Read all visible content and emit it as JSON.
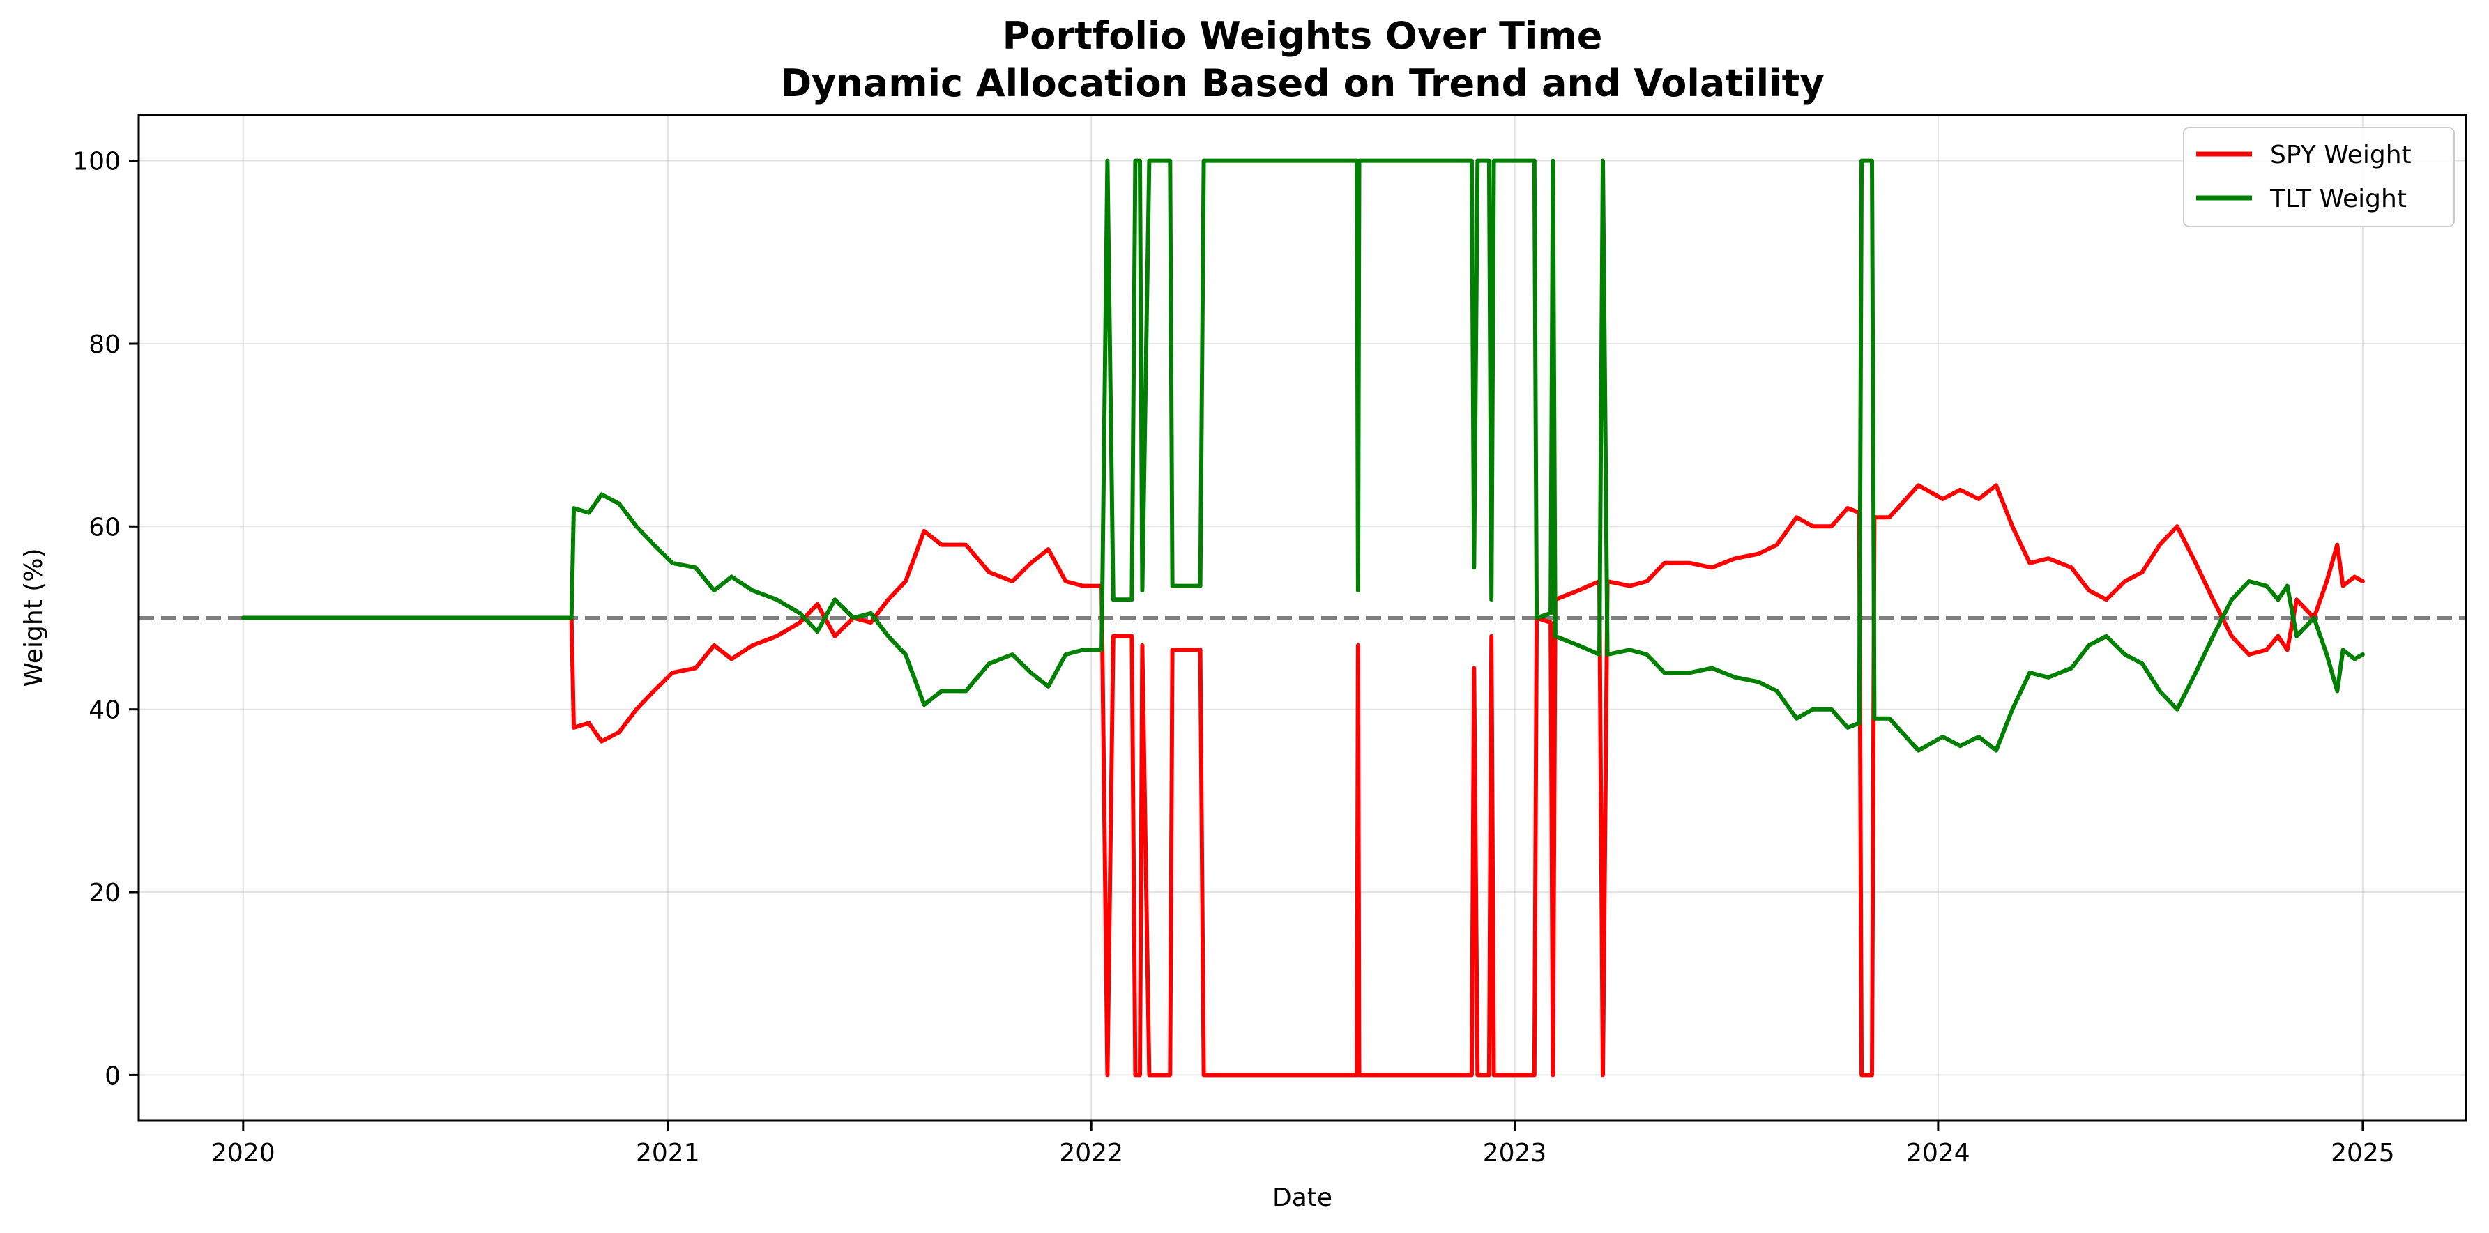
{
  "chart_data": {
    "type": "line",
    "title": "Portfolio Weights Over Time",
    "subtitle": "Dynamic Allocation Based on Trend and Volatility",
    "xlabel": "Date",
    "ylabel": "Weight (%)",
    "xlim": [
      "2019-10-03",
      "2025-03-31"
    ],
    "ylim": [
      -5,
      105
    ],
    "x_ticks": [
      "2020-01-01",
      "2021-01-01",
      "2022-01-01",
      "2023-01-01",
      "2024-01-01",
      "2025-01-01"
    ],
    "x_tick_labels": [
      "2020",
      "2021",
      "2022",
      "2023",
      "2024",
      "2025"
    ],
    "y_ticks": [
      0,
      20,
      40,
      60,
      80,
      100
    ],
    "y_tick_labels": [
      "0",
      "20",
      "40",
      "60",
      "80",
      "100"
    ],
    "grid": true,
    "legend_position": "top-right",
    "reference_line": {
      "y": 50,
      "style": "dashed",
      "color": "#7f7f7f"
    },
    "series": [
      {
        "name": "SPY Weight",
        "color": "#ff0000",
        "points": [
          [
            "2020-01-01",
            50
          ],
          [
            "2020-10-10",
            50
          ],
          [
            "2020-10-12",
            38
          ],
          [
            "2020-10-25",
            38.5
          ],
          [
            "2020-11-05",
            36.5
          ],
          [
            "2020-11-20",
            37.5
          ],
          [
            "2020-12-05",
            40
          ],
          [
            "2020-12-20",
            42
          ],
          [
            "2021-01-05",
            44
          ],
          [
            "2021-01-25",
            44.5
          ],
          [
            "2021-02-10",
            47
          ],
          [
            "2021-02-25",
            45.5
          ],
          [
            "2021-03-15",
            47
          ],
          [
            "2021-04-05",
            48
          ],
          [
            "2021-04-25",
            49.5
          ],
          [
            "2021-05-10",
            51.5
          ],
          [
            "2021-05-25",
            48
          ],
          [
            "2021-06-10",
            50
          ],
          [
            "2021-06-25",
            49.5
          ],
          [
            "2021-07-10",
            52
          ],
          [
            "2021-07-25",
            54
          ],
          [
            "2021-08-10",
            59.5
          ],
          [
            "2021-08-25",
            58
          ],
          [
            "2021-09-15",
            58
          ],
          [
            "2021-10-05",
            55
          ],
          [
            "2021-10-25",
            54
          ],
          [
            "2021-11-10",
            56
          ],
          [
            "2021-11-25",
            57.5
          ],
          [
            "2021-12-10",
            54
          ],
          [
            "2021-12-25",
            53.5
          ],
          [
            "2022-01-10",
            53.5
          ],
          [
            "2022-01-15",
            0
          ],
          [
            "2022-01-20",
            48
          ],
          [
            "2022-02-05",
            48
          ],
          [
            "2022-02-08",
            0
          ],
          [
            "2022-02-12",
            0
          ],
          [
            "2022-02-14",
            47
          ],
          [
            "2022-02-20",
            0
          ],
          [
            "2022-03-10",
            0
          ],
          [
            "2022-03-12",
            46.5
          ],
          [
            "2022-04-05",
            46.5
          ],
          [
            "2022-04-08",
            0
          ],
          [
            "2022-08-18",
            0
          ],
          [
            "2022-08-19",
            47
          ],
          [
            "2022-08-20",
            0
          ],
          [
            "2022-11-25",
            0
          ],
          [
            "2022-11-27",
            44.5
          ],
          [
            "2022-11-30",
            0
          ],
          [
            "2022-12-10",
            0
          ],
          [
            "2022-12-12",
            48
          ],
          [
            "2022-12-14",
            0
          ],
          [
            "2023-01-18",
            0
          ],
          [
            "2023-01-20",
            50
          ],
          [
            "2023-02-01",
            49.5
          ],
          [
            "2023-02-03",
            0
          ],
          [
            "2023-02-05",
            52
          ],
          [
            "2023-02-25",
            53
          ],
          [
            "2023-03-15",
            54
          ],
          [
            "2023-03-18",
            0
          ],
          [
            "2023-03-22",
            54
          ],
          [
            "2023-04-10",
            53.5
          ],
          [
            "2023-04-25",
            54
          ],
          [
            "2023-05-10",
            56
          ],
          [
            "2023-06-01",
            56
          ],
          [
            "2023-06-20",
            55.5
          ],
          [
            "2023-07-10",
            56.5
          ],
          [
            "2023-07-30",
            57
          ],
          [
            "2023-08-15",
            58
          ],
          [
            "2023-09-01",
            61
          ],
          [
            "2023-09-15",
            60
          ],
          [
            "2023-10-01",
            60
          ],
          [
            "2023-10-15",
            62
          ],
          [
            "2023-10-25",
            61.5
          ],
          [
            "2023-10-27",
            0
          ],
          [
            "2023-11-05",
            0
          ],
          [
            "2023-11-07",
            61
          ],
          [
            "2023-11-20",
            61
          ],
          [
            "2023-12-15",
            64.5
          ],
          [
            "2024-01-05",
            63
          ],
          [
            "2024-01-20",
            64
          ],
          [
            "2024-02-05",
            63
          ],
          [
            "2024-02-20",
            64.5
          ],
          [
            "2024-03-05",
            60
          ],
          [
            "2024-03-20",
            56
          ],
          [
            "2024-04-05",
            56.5
          ],
          [
            "2024-04-25",
            55.5
          ],
          [
            "2024-05-10",
            53
          ],
          [
            "2024-05-25",
            52
          ],
          [
            "2024-06-10",
            54
          ],
          [
            "2024-06-25",
            55
          ],
          [
            "2024-07-10",
            58
          ],
          [
            "2024-07-25",
            60
          ],
          [
            "2024-08-10",
            56
          ],
          [
            "2024-08-25",
            52
          ],
          [
            "2024-09-10",
            48
          ],
          [
            "2024-09-25",
            46
          ],
          [
            "2024-10-10",
            46.5
          ],
          [
            "2024-10-20",
            48
          ],
          [
            "2024-10-28",
            46.5
          ],
          [
            "2024-11-05",
            52
          ],
          [
            "2024-11-20",
            50
          ],
          [
            "2024-12-01",
            54
          ],
          [
            "2024-12-10",
            58
          ],
          [
            "2024-12-15",
            53.5
          ],
          [
            "2024-12-25",
            54.5
          ],
          [
            "2025-01-01",
            54
          ]
        ]
      },
      {
        "name": "TLT Weight",
        "color": "#008000",
        "points": [
          [
            "2020-01-01",
            50
          ],
          [
            "2020-10-10",
            50
          ],
          [
            "2020-10-12",
            62
          ],
          [
            "2020-10-25",
            61.5
          ],
          [
            "2020-11-05",
            63.5
          ],
          [
            "2020-11-20",
            62.5
          ],
          [
            "2020-12-05",
            60
          ],
          [
            "2020-12-20",
            58
          ],
          [
            "2021-01-05",
            56
          ],
          [
            "2021-01-25",
            55.5
          ],
          [
            "2021-02-10",
            53
          ],
          [
            "2021-02-25",
            54.5
          ],
          [
            "2021-03-15",
            53
          ],
          [
            "2021-04-05",
            52
          ],
          [
            "2021-04-25",
            50.5
          ],
          [
            "2021-05-10",
            48.5
          ],
          [
            "2021-05-25",
            52
          ],
          [
            "2021-06-10",
            50
          ],
          [
            "2021-06-25",
            50.5
          ],
          [
            "2021-07-10",
            48
          ],
          [
            "2021-07-25",
            46
          ],
          [
            "2021-08-10",
            40.5
          ],
          [
            "2021-08-25",
            42
          ],
          [
            "2021-09-15",
            42
          ],
          [
            "2021-10-05",
            45
          ],
          [
            "2021-10-25",
            46
          ],
          [
            "2021-11-10",
            44
          ],
          [
            "2021-11-25",
            42.5
          ],
          [
            "2021-12-10",
            46
          ],
          [
            "2021-12-25",
            46.5
          ],
          [
            "2022-01-10",
            46.5
          ],
          [
            "2022-01-15",
            100
          ],
          [
            "2022-01-20",
            52
          ],
          [
            "2022-02-05",
            52
          ],
          [
            "2022-02-08",
            100
          ],
          [
            "2022-02-12",
            100
          ],
          [
            "2022-02-14",
            53
          ],
          [
            "2022-02-20",
            100
          ],
          [
            "2022-03-10",
            100
          ],
          [
            "2022-03-12",
            53.5
          ],
          [
            "2022-04-05",
            53.5
          ],
          [
            "2022-04-08",
            100
          ],
          [
            "2022-08-18",
            100
          ],
          [
            "2022-08-19",
            53
          ],
          [
            "2022-08-20",
            100
          ],
          [
            "2022-11-25",
            100
          ],
          [
            "2022-11-27",
            55.5
          ],
          [
            "2022-11-30",
            100
          ],
          [
            "2022-12-10",
            100
          ],
          [
            "2022-12-12",
            52
          ],
          [
            "2022-12-14",
            100
          ],
          [
            "2023-01-18",
            100
          ],
          [
            "2023-01-20",
            50
          ],
          [
            "2023-02-01",
            50.5
          ],
          [
            "2023-02-03",
            100
          ],
          [
            "2023-02-05",
            48
          ],
          [
            "2023-02-25",
            47
          ],
          [
            "2023-03-15",
            46
          ],
          [
            "2023-03-18",
            100
          ],
          [
            "2023-03-22",
            46
          ],
          [
            "2023-04-10",
            46.5
          ],
          [
            "2023-04-25",
            46
          ],
          [
            "2023-05-10",
            44
          ],
          [
            "2023-06-01",
            44
          ],
          [
            "2023-06-20",
            44.5
          ],
          [
            "2023-07-10",
            43.5
          ],
          [
            "2023-07-30",
            43
          ],
          [
            "2023-08-15",
            42
          ],
          [
            "2023-09-01",
            39
          ],
          [
            "2023-09-15",
            40
          ],
          [
            "2023-10-01",
            40
          ],
          [
            "2023-10-15",
            38
          ],
          [
            "2023-10-25",
            38.5
          ],
          [
            "2023-10-27",
            100
          ],
          [
            "2023-11-05",
            100
          ],
          [
            "2023-11-07",
            39
          ],
          [
            "2023-11-20",
            39
          ],
          [
            "2023-12-15",
            35.5
          ],
          [
            "2024-01-05",
            37
          ],
          [
            "2024-01-20",
            36
          ],
          [
            "2024-02-05",
            37
          ],
          [
            "2024-02-20",
            35.5
          ],
          [
            "2024-03-05",
            40
          ],
          [
            "2024-03-20",
            44
          ],
          [
            "2024-04-05",
            43.5
          ],
          [
            "2024-04-25",
            44.5
          ],
          [
            "2024-05-10",
            47
          ],
          [
            "2024-05-25",
            48
          ],
          [
            "2024-06-10",
            46
          ],
          [
            "2024-06-25",
            45
          ],
          [
            "2024-07-10",
            42
          ],
          [
            "2024-07-25",
            40
          ],
          [
            "2024-08-10",
            44
          ],
          [
            "2024-08-25",
            48
          ],
          [
            "2024-09-10",
            52
          ],
          [
            "2024-09-25",
            54
          ],
          [
            "2024-10-10",
            53.5
          ],
          [
            "2024-10-20",
            52
          ],
          [
            "2024-10-28",
            53.5
          ],
          [
            "2024-11-05",
            48
          ],
          [
            "2024-11-20",
            50
          ],
          [
            "2024-12-01",
            46
          ],
          [
            "2024-12-10",
            42
          ],
          [
            "2024-12-15",
            46.5
          ],
          [
            "2024-12-25",
            45.5
          ],
          [
            "2025-01-01",
            46
          ]
        ]
      }
    ]
  }
}
